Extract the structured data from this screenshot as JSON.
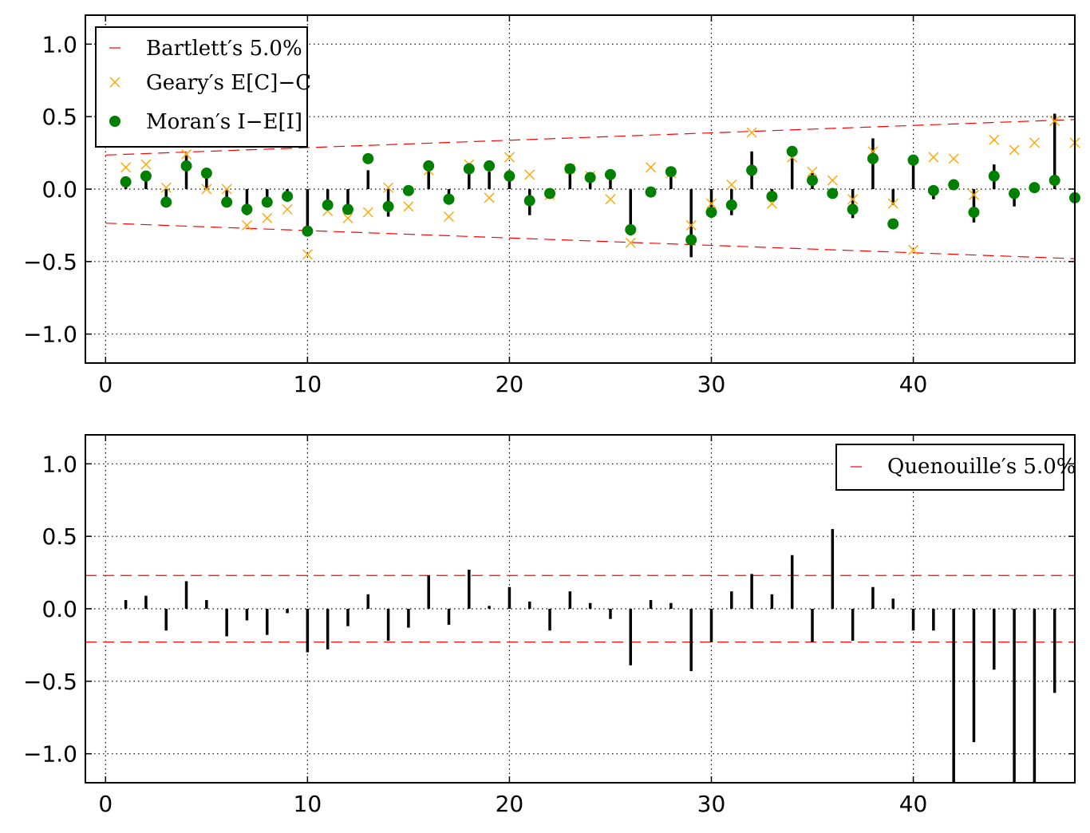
{
  "colors": {
    "bartlett": "#ff0000",
    "geary": "#ffa500",
    "moran": "#008000",
    "bar": "#000000",
    "grid": "#000000"
  },
  "chart_data": [
    {
      "type": "scatter",
      "xlim": [
        -1,
        48
      ],
      "ylim": [
        -1.2,
        1.2
      ],
      "xticks": [
        0,
        10,
        20,
        30,
        40
      ],
      "yticks": [
        1.0,
        0.5,
        0.0,
        -0.5,
        -1.0
      ],
      "xtick_labels": [
        "0",
        "10",
        "20",
        "30",
        "40"
      ],
      "ytick_labels": [
        "1.0",
        "0.5",
        "0.0",
        "−0.5",
        "−1.0"
      ],
      "grid": true,
      "legend_position": "top-left",
      "legend": [
        {
          "label": "Bartlett′s 5.0%",
          "marker": "dash",
          "color": "#ff0000"
        },
        {
          "label": "Geary′s E[C]−C",
          "marker": "x",
          "color": "#ffa500"
        },
        {
          "label": "Moran′s I−E[I]",
          "marker": "circle",
          "color": "#008000"
        }
      ],
      "bartlett_band": {
        "x": [
          0,
          48
        ],
        "upper": [
          0.235,
          0.48
        ],
        "lower": [
          -0.235,
          -0.48
        ]
      },
      "x": [
        1,
        2,
        3,
        4,
        5,
        6,
        7,
        8,
        9,
        10,
        11,
        12,
        13,
        14,
        15,
        16,
        17,
        18,
        19,
        20,
        21,
        22,
        23,
        24,
        25,
        26,
        27,
        28,
        29,
        30,
        31,
        32,
        33,
        34,
        35,
        36,
        37,
        38,
        39,
        40,
        41,
        42,
        43,
        44,
        45,
        46,
        47,
        48
      ],
      "series": [
        {
          "name": "Geary′s E[C]−C",
          "values": [
            0.15,
            0.17,
            0.01,
            0.24,
            0.0,
            0.0,
            -0.25,
            -0.2,
            -0.14,
            -0.45,
            -0.15,
            -0.2,
            -0.16,
            0.01,
            -0.12,
            0.13,
            -0.19,
            0.17,
            -0.06,
            0.22,
            0.1,
            -0.04,
            0.14,
            0.09,
            -0.07,
            -0.37,
            0.15,
            0.11,
            -0.25,
            -0.1,
            0.03,
            0.39,
            -0.1,
            0.22,
            0.12,
            0.06,
            -0.07,
            0.26,
            -0.1,
            -0.42,
            0.22,
            0.21,
            -0.04,
            0.34,
            0.27,
            0.32,
            0.47,
            0.32
          ]
        },
        {
          "name": "Moran′s I−E[I]",
          "values": [
            0.05,
            0.09,
            -0.09,
            0.16,
            0.11,
            -0.09,
            -0.14,
            -0.09,
            -0.05,
            -0.29,
            -0.11,
            -0.14,
            0.21,
            -0.12,
            -0.01,
            0.16,
            -0.07,
            0.14,
            0.16,
            0.09,
            -0.08,
            -0.03,
            0.14,
            0.08,
            0.1,
            -0.28,
            -0.02,
            0.12,
            -0.35,
            -0.16,
            -0.11,
            0.13,
            -0.05,
            0.26,
            0.06,
            -0.03,
            -0.14,
            0.21,
            -0.24,
            0.2,
            -0.01,
            0.03,
            -0.16,
            0.09,
            -0.03,
            0.01,
            0.06,
            -0.06
          ]
        },
        {
          "name": "bars",
          "values": [
            0.03,
            0.1,
            -0.1,
            0.24,
            0.1,
            -0.12,
            -0.18,
            -0.1,
            -0.06,
            -0.32,
            -0.14,
            -0.14,
            0.13,
            -0.19,
            -0.02,
            0.15,
            -0.1,
            0.18,
            0.12,
            0.13,
            -0.18,
            -0.03,
            0.16,
            0.1,
            0.08,
            -0.32,
            0.0,
            0.14,
            -0.47,
            -0.16,
            -0.18,
            0.26,
            -0.04,
            0.29,
            0.11,
            -0.02,
            -0.2,
            0.35,
            -0.11,
            0.19,
            -0.07,
            0.04,
            -0.23,
            0.17,
            -0.12,
            0.01,
            0.52,
            0.0
          ]
        }
      ]
    },
    {
      "type": "bar",
      "xlim": [
        -1,
        48
      ],
      "ylim": [
        -1.2,
        1.2
      ],
      "xticks": [
        0,
        10,
        20,
        30,
        40
      ],
      "yticks": [
        1.0,
        0.5,
        0.0,
        -0.5,
        -1.0
      ],
      "xtick_labels": [
        "0",
        "10",
        "20",
        "30",
        "40"
      ],
      "ytick_labels": [
        "1.0",
        "0.5",
        "0.0",
        "−0.5",
        "−1.0"
      ],
      "grid": true,
      "legend_position": "top-right",
      "legend": [
        {
          "label": "Quenouille′s 5.0%",
          "marker": "dash",
          "color": "#ff0000"
        }
      ],
      "quenouille_band": [
        0.23,
        -0.23
      ],
      "x": [
        1,
        2,
        3,
        4,
        5,
        6,
        7,
        8,
        9,
        10,
        11,
        12,
        13,
        14,
        15,
        16,
        17,
        18,
        19,
        20,
        21,
        22,
        23,
        24,
        25,
        26,
        27,
        28,
        29,
        30,
        31,
        32,
        33,
        34,
        35,
        36,
        37,
        38,
        39,
        40,
        41,
        42,
        43,
        44,
        45,
        46,
        47
      ],
      "values": [
        0.06,
        0.09,
        -0.15,
        0.19,
        0.06,
        -0.19,
        -0.08,
        -0.18,
        -0.03,
        -0.3,
        -0.28,
        -0.12,
        0.1,
        -0.22,
        -0.13,
        0.23,
        -0.11,
        0.27,
        0.02,
        0.15,
        0.05,
        -0.15,
        0.12,
        0.04,
        -0.07,
        -0.39,
        0.06,
        0.04,
        -0.43,
        -0.23,
        0.12,
        0.24,
        0.1,
        0.37,
        -0.23,
        0.55,
        -0.22,
        0.15,
        0.07,
        -0.15,
        -0.15,
        -1.2,
        -0.92,
        -0.42,
        -1.2,
        -1.2,
        -0.58
      ]
    }
  ]
}
